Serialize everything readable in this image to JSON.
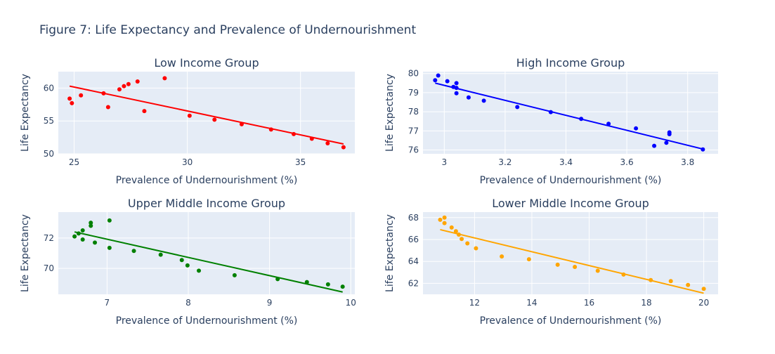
{
  "title": "Figure 7: Life Expectancy and Prevalence of Undernourishment",
  "chart_data": [
    {
      "type": "scatter",
      "title": "Low Income Group",
      "xlabel": "Prevalence of Undernourishment (%)",
      "ylabel": "Life Expectancy",
      "color": "#ff0000",
      "xlim": [
        24.3,
        37.4
      ],
      "ylim": [
        50.0,
        62.5
      ],
      "xticks": [
        25,
        30,
        35
      ],
      "xtick_labels": [
        "25",
        "30",
        "35"
      ],
      "yticks": [
        50,
        55,
        60
      ],
      "ytick_labels": [
        "50",
        "55",
        "60"
      ],
      "points": [
        [
          24.8,
          58.4
        ],
        [
          24.9,
          57.7
        ],
        [
          25.3,
          58.9
        ],
        [
          26.3,
          59.2
        ],
        [
          26.5,
          57.1
        ],
        [
          27.0,
          59.8
        ],
        [
          27.2,
          60.3
        ],
        [
          27.4,
          60.6
        ],
        [
          27.8,
          61.0
        ],
        [
          28.1,
          56.5
        ],
        [
          29.0,
          61.5
        ],
        [
          30.1,
          55.8
        ],
        [
          31.2,
          55.2
        ],
        [
          32.4,
          54.5
        ],
        [
          33.7,
          53.7
        ],
        [
          34.7,
          53.0
        ],
        [
          35.5,
          52.3
        ],
        [
          36.2,
          51.6
        ],
        [
          36.9,
          51.0
        ]
      ],
      "trend": [
        [
          24.8,
          60.3
        ],
        [
          36.9,
          51.5
        ]
      ]
    },
    {
      "type": "scatter",
      "title": "High Income Group",
      "xlabel": "Prevalence of Undernourishment (%)",
      "ylabel": "Life Expectancy",
      "color": "#0000ff",
      "xlim": [
        2.93,
        3.9
      ],
      "ylim": [
        75.8,
        80.1
      ],
      "xticks": [
        3.0,
        3.2,
        3.4,
        3.6,
        3.8
      ],
      "xtick_labels": [
        "3",
        "3.2",
        "3.4",
        "3.6",
        "3.8"
      ],
      "yticks": [
        76,
        77,
        78,
        79,
        80
      ],
      "ytick_labels": [
        "76",
        "77",
        "78",
        "79",
        "80"
      ],
      "points": [
        [
          2.97,
          79.65
        ],
        [
          2.98,
          79.9
        ],
        [
          3.01,
          79.6
        ],
        [
          3.03,
          79.3
        ],
        [
          3.04,
          79.5
        ],
        [
          3.04,
          79.25
        ],
        [
          3.04,
          78.97
        ],
        [
          3.08,
          78.75
        ],
        [
          3.13,
          78.58
        ],
        [
          3.24,
          78.25
        ],
        [
          3.35,
          77.98
        ],
        [
          3.45,
          77.63
        ],
        [
          3.54,
          77.37
        ],
        [
          3.63,
          77.13
        ],
        [
          3.69,
          76.22
        ],
        [
          3.73,
          76.38
        ],
        [
          3.74,
          76.92
        ],
        [
          3.74,
          76.83
        ],
        [
          3.85,
          76.03
        ]
      ],
      "trend": [
        [
          2.97,
          79.5
        ],
        [
          3.85,
          76.05
        ]
      ]
    },
    {
      "type": "scatter",
      "title": "Upper Middle Income Group",
      "xlabel": "Prevalence of Undernourishment (%)",
      "ylabel": "Life Expectancy",
      "color": "#008000",
      "xlim": [
        6.4,
        10.05
      ],
      "ylim": [
        68.3,
        73.7
      ],
      "xticks": [
        7,
        8,
        9,
        10
      ],
      "xtick_labels": [
        "7",
        "8",
        "9",
        "10"
      ],
      "yticks": [
        70,
        72
      ],
      "ytick_labels": [
        "70",
        "72"
      ],
      "points": [
        [
          6.6,
          72.1
        ],
        [
          6.65,
          72.3
        ],
        [
          6.7,
          71.9
        ],
        [
          6.7,
          72.5
        ],
        [
          6.8,
          72.8
        ],
        [
          6.8,
          73.0
        ],
        [
          6.85,
          71.7
        ],
        [
          7.03,
          73.15
        ],
        [
          7.03,
          71.35
        ],
        [
          7.33,
          71.15
        ],
        [
          7.66,
          70.9
        ],
        [
          7.92,
          70.55
        ],
        [
          7.99,
          70.2
        ],
        [
          8.13,
          69.85
        ],
        [
          8.57,
          69.55
        ],
        [
          9.1,
          69.3
        ],
        [
          9.46,
          69.1
        ],
        [
          9.72,
          68.95
        ],
        [
          9.9,
          68.8
        ]
      ],
      "trend": [
        [
          6.6,
          72.4
        ],
        [
          9.9,
          68.45
        ]
      ]
    },
    {
      "type": "scatter",
      "title": "Lower Middle Income Group",
      "xlabel": "Prevalence of Undernourishment (%)",
      "ylabel": "Life Expectancy",
      "color": "#ffa500",
      "xlim": [
        10.2,
        20.5
      ],
      "ylim": [
        61.0,
        68.5
      ],
      "xticks": [
        12,
        14,
        16,
        18,
        20
      ],
      "xtick_labels": [
        "12",
        "14",
        "16",
        "18",
        "20"
      ],
      "yticks": [
        62,
        64,
        66,
        68
      ],
      "ytick_labels": [
        "62",
        "64",
        "66",
        "68"
      ],
      "points": [
        [
          10.8,
          67.8
        ],
        [
          10.95,
          68.0
        ],
        [
          10.95,
          67.5
        ],
        [
          11.2,
          67.1
        ],
        [
          11.35,
          66.75
        ],
        [
          11.45,
          66.45
        ],
        [
          11.55,
          66.05
        ],
        [
          11.75,
          65.65
        ],
        [
          12.05,
          65.2
        ],
        [
          12.95,
          64.45
        ],
        [
          13.9,
          64.2
        ],
        [
          14.9,
          63.7
        ],
        [
          15.5,
          63.5
        ],
        [
          16.3,
          63.15
        ],
        [
          17.2,
          62.8
        ],
        [
          18.15,
          62.3
        ],
        [
          18.85,
          62.2
        ],
        [
          19.45,
          61.85
        ],
        [
          20.0,
          61.5
        ]
      ],
      "trend": [
        [
          10.8,
          66.9
        ],
        [
          20.0,
          61.1
        ]
      ]
    }
  ]
}
